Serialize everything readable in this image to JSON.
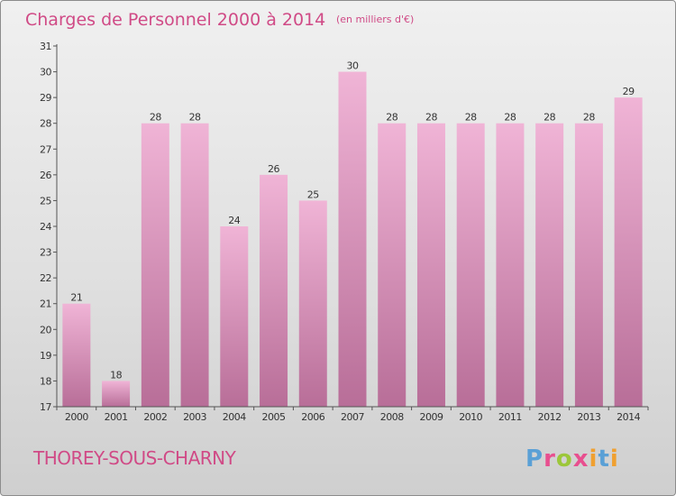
{
  "header": {
    "title": "Charges de Personnel 2000 à 2014",
    "unit_note": "(en milliers d'€)"
  },
  "commune": "THOREY-SOUS-CHARNY",
  "logo": {
    "text": "Proxiti",
    "colors": [
      "#5aa0d6",
      "#e84f8f",
      "#9cc73a",
      "#e84f8f",
      "#f0a030",
      "#5aa0d6",
      "#f0a030"
    ]
  },
  "colors": {
    "bar_light": "#f0b4d6",
    "bar_dark": "#b86e98",
    "accent": "#d04a86"
  },
  "chart_data": {
    "type": "bar",
    "title": "Charges de Personnel 2000 à 2014",
    "subtitle": "(en milliers d'€)",
    "categories": [
      "2000",
      "2001",
      "2002",
      "2003",
      "2004",
      "2005",
      "2006",
      "2007",
      "2008",
      "2009",
      "2010",
      "2011",
      "2012",
      "2013",
      "2014"
    ],
    "values": [
      21,
      18,
      28,
      28,
      24,
      26,
      25,
      30,
      28,
      28,
      28,
      28,
      28,
      28,
      29
    ],
    "ylim": [
      17,
      31
    ],
    "yticks": [
      17,
      18,
      19,
      20,
      21,
      22,
      23,
      24,
      25,
      26,
      27,
      28,
      29,
      30,
      31
    ],
    "grid": false,
    "data_labels": true
  }
}
